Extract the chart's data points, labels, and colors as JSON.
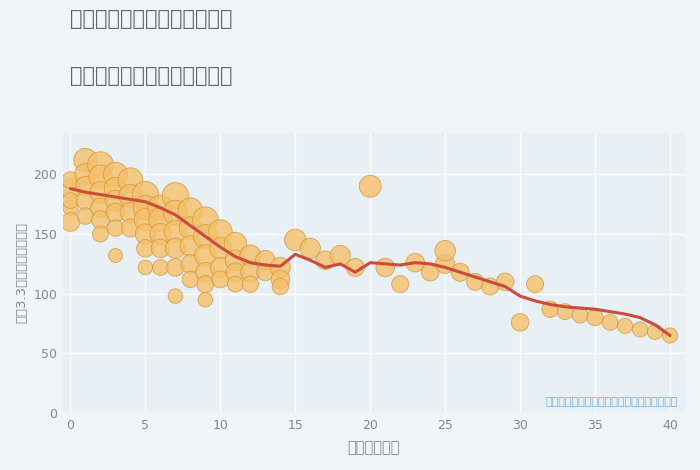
{
  "title_line1": "東京都京王よみうりランド駅",
  "title_line2": "築年数別中古マンション価格",
  "xlabel": "築年数（年）",
  "ylabel": "坪（3.3㎡）単価（万円）",
  "annotation": "円の大きさは、取引のあった物件面積を示す",
  "fig_bg_color": "#f0f5f8",
  "ax_bg_color": "#e8f0f5",
  "scatter_color": "#f5c069",
  "scatter_edge_color": "#d4933a",
  "line_color": "#cc4b3c",
  "title_color": "#666666",
  "annotation_color": "#7baad4",
  "grid_color": "#ffffff",
  "tick_color": "#888888",
  "xlim": [
    -0.5,
    41
  ],
  "ylim": [
    0,
    235
  ],
  "yticks": [
    0,
    50,
    100,
    150,
    200
  ],
  "xticks": [
    0,
    5,
    10,
    15,
    20,
    25,
    30,
    35,
    40
  ],
  "scatter_x": [
    0,
    0,
    0,
    0,
    0,
    1,
    1,
    1,
    1,
    1,
    2,
    2,
    2,
    2,
    2,
    2,
    3,
    3,
    3,
    3,
    3,
    3,
    4,
    4,
    4,
    4,
    5,
    5,
    5,
    5,
    5,
    5,
    6,
    6,
    6,
    6,
    6,
    7,
    7,
    7,
    7,
    7,
    7,
    8,
    8,
    8,
    8,
    8,
    9,
    9,
    9,
    9,
    9,
    9,
    10,
    10,
    10,
    10,
    11,
    11,
    11,
    11,
    12,
    12,
    12,
    13,
    13,
    14,
    14,
    14,
    15,
    16,
    17,
    18,
    19,
    20,
    21,
    22,
    23,
    24,
    25,
    25,
    26,
    27,
    28,
    29,
    30,
    31,
    32,
    33,
    34,
    35,
    36,
    37,
    38,
    39,
    40
  ],
  "scatter_y": [
    188,
    195,
    172,
    160,
    178,
    212,
    200,
    190,
    178,
    165,
    208,
    198,
    185,
    172,
    162,
    150,
    200,
    188,
    178,
    168,
    155,
    132,
    195,
    182,
    168,
    155,
    183,
    172,
    162,
    150,
    138,
    122,
    172,
    162,
    150,
    138,
    122,
    182,
    168,
    152,
    138,
    122,
    98,
    170,
    155,
    140,
    125,
    112,
    162,
    148,
    132,
    118,
    108,
    95,
    152,
    138,
    122,
    112,
    142,
    128,
    118,
    108,
    132,
    118,
    108,
    128,
    118,
    122,
    112,
    106,
    145,
    138,
    128,
    132,
    122,
    190,
    122,
    108,
    126,
    118,
    125,
    136,
    118,
    110,
    106,
    110,
    76,
    108,
    87,
    85,
    82,
    80,
    76,
    73,
    70,
    68,
    65
  ],
  "scatter_size": [
    200,
    150,
    120,
    180,
    130,
    280,
    240,
    200,
    170,
    140,
    350,
    280,
    240,
    200,
    170,
    130,
    300,
    260,
    220,
    180,
    140,
    100,
    320,
    270,
    220,
    170,
    360,
    310,
    260,
    210,
    160,
    110,
    330,
    280,
    230,
    180,
    130,
    360,
    310,
    260,
    210,
    160,
    110,
    310,
    260,
    220,
    180,
    140,
    340,
    290,
    240,
    200,
    150,
    110,
    290,
    240,
    200,
    150,
    260,
    220,
    180,
    130,
    230,
    190,
    140,
    200,
    150,
    210,
    180,
    140,
    240,
    210,
    180,
    210,
    170,
    250,
    180,
    150,
    180,
    160,
    190,
    220,
    170,
    150,
    150,
    160,
    160,
    150,
    140,
    130,
    130,
    140,
    130,
    120,
    120,
    120,
    120
  ],
  "line_x": [
    0,
    1,
    2,
    3,
    4,
    5,
    6,
    7,
    8,
    9,
    10,
    11,
    12,
    13,
    14,
    15,
    16,
    17,
    18,
    19,
    20,
    21,
    22,
    23,
    24,
    25,
    26,
    27,
    28,
    29,
    30,
    31,
    32,
    33,
    34,
    35,
    36,
    37,
    38,
    39,
    40
  ],
  "line_y": [
    188,
    185,
    183,
    181,
    179,
    177,
    172,
    166,
    157,
    148,
    139,
    131,
    126,
    124,
    123,
    133,
    128,
    122,
    125,
    118,
    126,
    125,
    124,
    126,
    125,
    122,
    118,
    114,
    110,
    106,
    98,
    94,
    91,
    89,
    88,
    87,
    85,
    83,
    80,
    74,
    65
  ]
}
